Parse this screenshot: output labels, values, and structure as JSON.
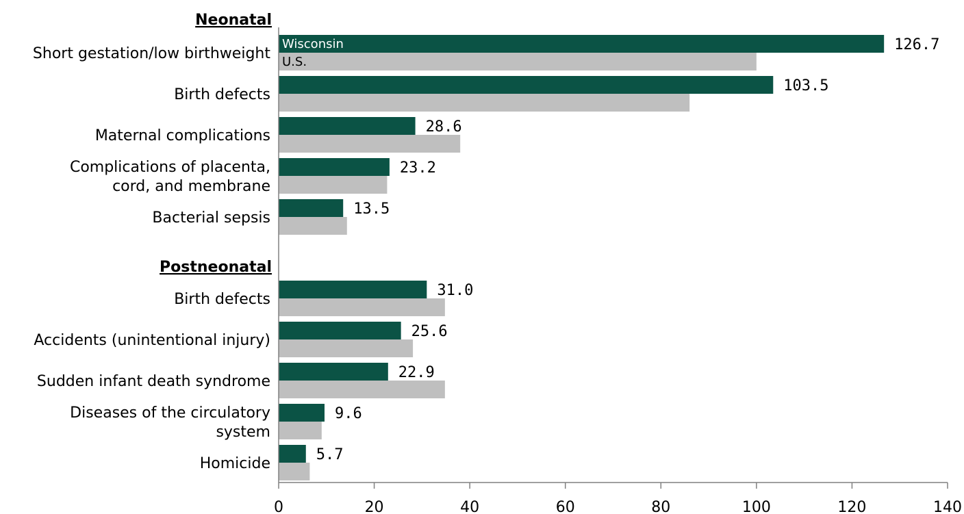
{
  "chart_data": {
    "type": "bar",
    "orientation": "horizontal",
    "title": "",
    "xlabel": "",
    "ylabel": "",
    "xlim": [
      0,
      140
    ],
    "xticks": [
      0,
      20,
      40,
      60,
      80,
      100,
      120,
      140
    ],
    "grid": false,
    "legend": "in-bar labels on first category",
    "colors": {
      "Wisconsin": "#0b5345",
      "U.S.": "#bfbfbf"
    },
    "series_labels": [
      "Wisconsin",
      "U.S."
    ],
    "groups": [
      {
        "name": "Neonatal",
        "categories": [
          "Short gestation/low birthweight",
          "Birth defects",
          "Maternal complications",
          "Complications of placenta, cord, and membrane",
          "Bacterial sepsis"
        ],
        "category_lines": [
          [
            "Short gestation/low birthweight"
          ],
          [
            "Birth defects"
          ],
          [
            "Maternal complications"
          ],
          [
            "Complications of placenta,",
            "cord, and membrane"
          ],
          [
            "Bacterial sepsis"
          ]
        ],
        "series": [
          {
            "name": "Wisconsin",
            "values": [
              126.7,
              103.5,
              28.6,
              23.2,
              13.5
            ],
            "labels": [
              "126.7",
              "103.5",
              "28.6",
              "23.2",
              "13.5"
            ]
          },
          {
            "name": "U.S.",
            "values": [
              100.0,
              86.0,
              38.0,
              22.7,
              14.3
            ]
          }
        ]
      },
      {
        "name": "Postneonatal",
        "categories": [
          "Birth defects",
          "Accidents (unintentional injury)",
          "Sudden infant death syndrome",
          "Diseases of the circulatory system",
          "Homicide"
        ],
        "category_lines": [
          [
            "Birth defects"
          ],
          [
            "Accidents (unintentional injury)"
          ],
          [
            "Sudden infant death syndrome"
          ],
          [
            "Diseases of the circulatory",
            "system"
          ],
          [
            "Homicide"
          ]
        ],
        "series": [
          {
            "name": "Wisconsin",
            "values": [
              31.0,
              25.6,
              22.9,
              9.6,
              5.7
            ],
            "labels": [
              "31.0",
              "25.6",
              "22.9",
              "9.6",
              "5.7"
            ]
          },
          {
            "name": "U.S.",
            "values": [
              34.8,
              28.1,
              34.8,
              9.0,
              6.5
            ]
          }
        ]
      }
    ]
  }
}
